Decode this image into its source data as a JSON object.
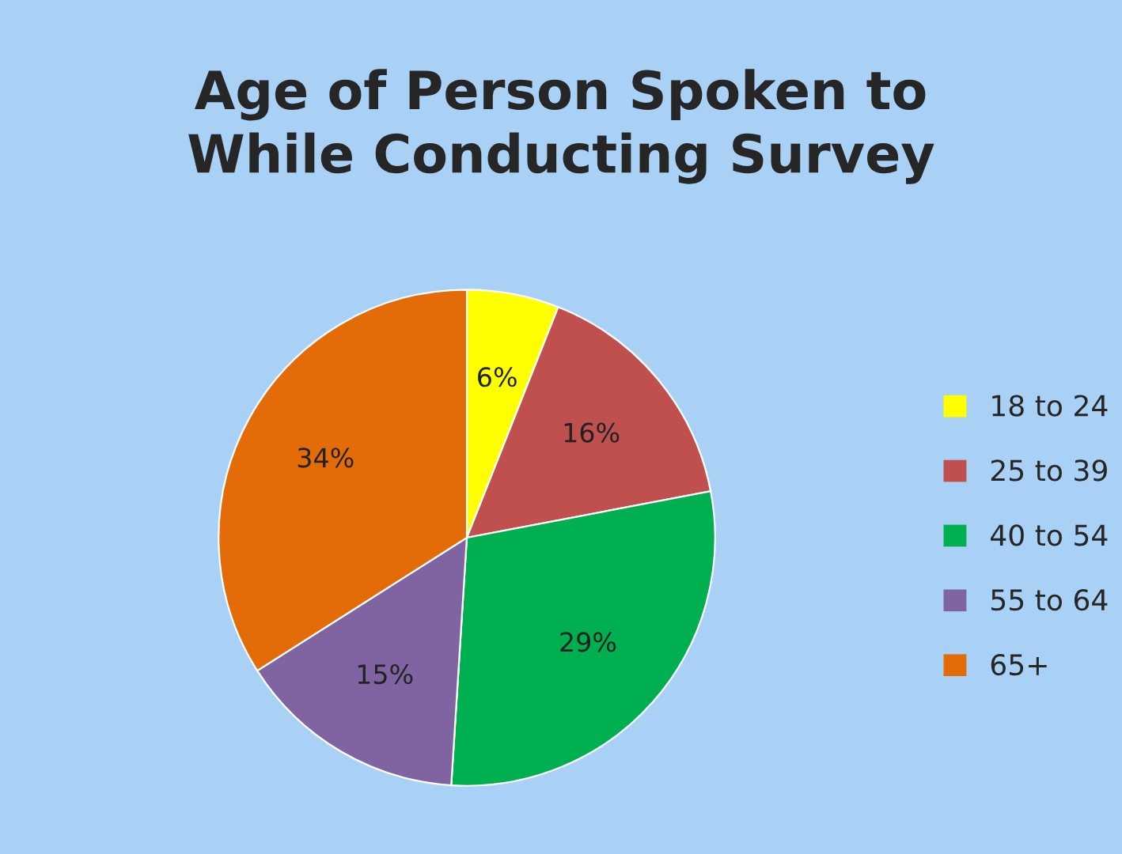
{
  "chart_data": {
    "type": "pie",
    "title": "Age of Person Spoken to\nWhile Conducting Survey",
    "categories": [
      "18 to 24",
      "25 to 39",
      "40 to 54",
      "55 to 64",
      "65+"
    ],
    "values": [
      6,
      16,
      29,
      15,
      34
    ],
    "colors": [
      "#ffff00",
      "#c0504d",
      "#00b050",
      "#8064a2",
      "#e36c09"
    ],
    "value_labels": [
      "6%",
      "16%",
      "29%",
      "15%",
      "34%"
    ],
    "legend": "right"
  }
}
